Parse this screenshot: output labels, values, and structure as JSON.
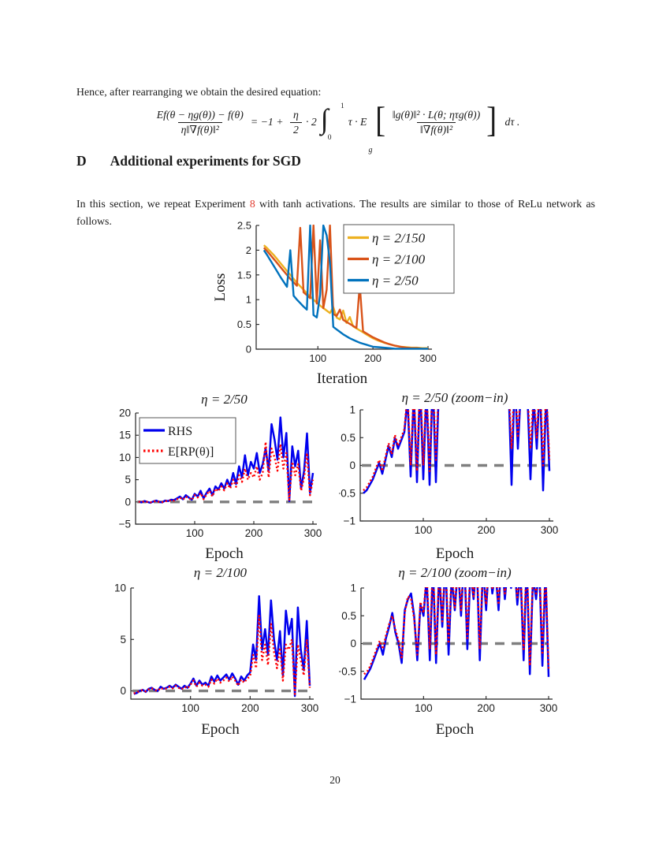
{
  "colors": {
    "link_red": "#e03a2e",
    "axis": "#222222",
    "zero_dash": "#7f7f7f",
    "matlab_yellow": "#EDB120",
    "matlab_orange": "#D95319",
    "matlab_blue": "#0072BD",
    "rhs_blue": "#0000EE",
    "rp_red": "#FF0000"
  },
  "text": {
    "lead": "Hence, after rearranging we obtain the desired equation:",
    "para_before": "In this section, we repeat Experiment ",
    "para_link": "8",
    "para_after": " with tanh activations. The results are similar to those of ReLu network as follows."
  },
  "equation": {
    "lhs_num": "Ef(θ − ηg(θ)) − f(θ)",
    "lhs_den": "η‖∇f(θ)‖²",
    "rhs_lead": "= −1 + ",
    "eta": "η",
    "two": "2",
    "times_two": "· 2",
    "integral": "∫",
    "int_upper": "1",
    "int_lower": "0",
    "tau_expect": "τ · E",
    "expect_sub": "g",
    "lbracket": "[",
    "brk_num": "‖g(θ)‖² · L(θ; ητg(θ))",
    "brk_den": "‖∇f(θ)‖²",
    "rbracket": "]",
    "dtau": "dτ ."
  },
  "section": {
    "label": "D",
    "title": "Additional experiments for SGD"
  },
  "page": {
    "number": "20"
  },
  "chart_data": [
    {
      "type": "line",
      "title": "",
      "xlabel": "Iteration",
      "ylabel": "Loss",
      "xlim": [
        -12,
        300
      ],
      "ylim": [
        0,
        2.5
      ],
      "xticks": [
        100,
        200,
        300
      ],
      "yticks": [
        0,
        0.5,
        1,
        1.5,
        2,
        2.5
      ],
      "zero_line": false,
      "legend_position": "northeast",
      "grid": false,
      "x": [
        2,
        8,
        14,
        20,
        26,
        32,
        38,
        44,
        50,
        56,
        62,
        68,
        74,
        80,
        86,
        92,
        98,
        104,
        110,
        116,
        122,
        128,
        134,
        140,
        146,
        152,
        158,
        164,
        170,
        176,
        182,
        188,
        194,
        200,
        210,
        220,
        230,
        240,
        250,
        260,
        270,
        280,
        290,
        300
      ],
      "series": [
        {
          "name": "η = 2/150",
          "color": "#EDB120",
          "width": 2.4,
          "y": [
            2.1,
            2.04,
            1.97,
            1.9,
            1.82,
            1.74,
            1.66,
            1.58,
            1.5,
            1.42,
            1.34,
            1.27,
            1.2,
            1.13,
            1.06,
            1.0,
            0.94,
            0.88,
            0.83,
            0.78,
            0.73,
            0.85,
            0.64,
            0.6,
            0.78,
            0.53,
            0.65,
            0.46,
            0.42,
            0.38,
            0.34,
            0.3,
            0.26,
            0.22,
            0.17,
            0.13,
            0.1,
            0.07,
            0.05,
            0.04,
            0.03,
            0.03,
            0.02,
            0.02
          ]
        },
        {
          "name": "η = 2/100",
          "color": "#D95319",
          "width": 2.4,
          "y": [
            2.05,
            1.98,
            1.9,
            1.82,
            1.74,
            1.66,
            1.58,
            1.5,
            1.42,
            1.35,
            1.28,
            2.45,
            1.15,
            1.09,
            1.03,
            2.5,
            0.92,
            2.2,
            0.83,
            1.2,
            2.5,
            0.71,
            0.67,
            0.8,
            0.59,
            0.55,
            0.51,
            0.47,
            0.43,
            1.3,
            0.36,
            0.32,
            0.28,
            0.24,
            0.19,
            0.14,
            0.1,
            0.07,
            0.05,
            0.03,
            0.02,
            0.02,
            0.01,
            0.01
          ]
        },
        {
          "name": "η = 2/50",
          "color": "#0072BD",
          "width": 2.4,
          "y": [
            2.0,
            1.9,
            1.79,
            1.68,
            1.57,
            1.46,
            1.36,
            1.26,
            2.0,
            1.08,
            1.0,
            0.93,
            0.86,
            0.8,
            2.5,
            0.69,
            0.64,
            1.1,
            2.5,
            2.3,
            1.75,
            0.45,
            0.4,
            0.35,
            0.3,
            0.26,
            0.22,
            0.19,
            0.16,
            0.13,
            0.11,
            0.09,
            0.07,
            0.05,
            0.04,
            0.03,
            0.02,
            0.01,
            0.01,
            0.01,
            0.01,
            0.01,
            0.01,
            0.01
          ]
        }
      ]
    },
    {
      "type": "line",
      "title": "η = 2/50",
      "xlabel": "Epoch",
      "ylabel": "",
      "xlim": [
        0,
        300
      ],
      "ylim": [
        -5,
        20
      ],
      "xticks": [
        100,
        200,
        300
      ],
      "yticks": [
        -5,
        0,
        5,
        10,
        15,
        20
      ],
      "zero_line": true,
      "legend_position": "northwest",
      "grid": false,
      "x": [
        5,
        10,
        15,
        20,
        25,
        30,
        35,
        40,
        45,
        50,
        55,
        60,
        65,
        70,
        75,
        80,
        85,
        90,
        95,
        100,
        105,
        110,
        115,
        120,
        125,
        130,
        135,
        140,
        145,
        150,
        155,
        160,
        165,
        170,
        175,
        180,
        185,
        190,
        195,
        200,
        205,
        210,
        215,
        220,
        225,
        230,
        235,
        240,
        245,
        250,
        255,
        260,
        265,
        270,
        275,
        280,
        285,
        290,
        295,
        300
      ],
      "series": [
        {
          "name": "RHS",
          "color": "#0000EE",
          "width": 2.5,
          "y": [
            0.1,
            -0.1,
            0.2,
            0.0,
            -0.2,
            0.1,
            0.3,
            0.0,
            -0.1,
            0.3,
            0.2,
            0.5,
            0.4,
            0.8,
            1.2,
            0.6,
            1.5,
            1.0,
            0.5,
            1.8,
            1.2,
            2.5,
            0.8,
            2.0,
            3.0,
            1.5,
            3.5,
            2.8,
            4.2,
            3.0,
            5.0,
            3.5,
            6.5,
            4.0,
            8.0,
            5.5,
            10.5,
            6.0,
            9.0,
            7.5,
            11.0,
            6.5,
            8.5,
            12.0,
            7.0,
            17.5,
            14.0,
            9.5,
            19.0,
            10.0,
            15.5,
            0.2,
            12.5,
            8.0,
            11.5,
            3.0,
            7.0,
            15.4,
            2.0,
            6.5
          ]
        },
        {
          "name": "E[RP(θ)]",
          "color": "#FF0000",
          "width": 2.4,
          "dash": "dot",
          "y": [
            0.05,
            -0.05,
            0.15,
            0.0,
            -0.1,
            0.1,
            0.2,
            0.0,
            -0.05,
            0.2,
            0.15,
            0.4,
            0.3,
            0.6,
            1.0,
            0.5,
            1.2,
            0.8,
            0.4,
            1.5,
            1.0,
            2.0,
            0.6,
            1.7,
            2.5,
            1.2,
            3.0,
            2.4,
            3.5,
            2.6,
            4.2,
            3.0,
            5.0,
            3.4,
            6.0,
            4.5,
            7.5,
            5.0,
            6.5,
            5.5,
            8.0,
            5.0,
            6.5,
            13.5,
            5.5,
            12.0,
            10.0,
            7.0,
            13.0,
            7.5,
            11.0,
            0.5,
            9.0,
            6.0,
            8.5,
            2.5,
            5.5,
            11.0,
            1.5,
            5.0
          ]
        }
      ]
    },
    {
      "type": "line",
      "title": "η = 2/50 (zoom-in)",
      "xlabel": "Epoch",
      "ylabel": "",
      "xlim": [
        0,
        300
      ],
      "ylim": [
        -1,
        1
      ],
      "xticks": [
        100,
        200,
        300
      ],
      "yticks": [
        -1,
        -0.5,
        0,
        0.5,
        1
      ],
      "zero_line": true,
      "legend_position": "none",
      "grid": false,
      "x": [
        5,
        10,
        15,
        20,
        25,
        30,
        35,
        40,
        45,
        50,
        55,
        60,
        65,
        70,
        75,
        80,
        85,
        90,
        95,
        100,
        105,
        110,
        115,
        120,
        125,
        130,
        135,
        140,
        145,
        150,
        155,
        160,
        165,
        170,
        175,
        180,
        185,
        190,
        195,
        200,
        205,
        210,
        215,
        220,
        225,
        230,
        235,
        240,
        245,
        250,
        255,
        260,
        265,
        270,
        275,
        280,
        285,
        290,
        295,
        300
      ],
      "series": [
        {
          "name": "RHS",
          "color": "#0000EE",
          "width": 2.5,
          "y": [
            -0.5,
            -0.45,
            -0.35,
            -0.25,
            -0.1,
            0.05,
            -0.15,
            0.1,
            0.35,
            0.15,
            0.5,
            0.3,
            0.45,
            0.6,
            1.2,
            -0.2,
            1.3,
            -0.3,
            1.5,
            -0.25,
            1.4,
            -0.35,
            1.6,
            -0.3,
            1.5,
            1.8,
            1.6,
            2.0,
            1.7,
            1.9,
            2.1,
            1.8,
            2.2,
            1.9,
            2.0,
            2.3,
            2.1,
            2.4,
            2.2,
            2.0,
            2.2,
            1.9,
            2.1,
            1.8,
            2.0,
            1.1,
            1.5,
            -0.35,
            1.6,
            0.3,
            1.4,
            1.1,
            1.3,
            -0.25,
            1.2,
            0.3,
            1.5,
            -0.45,
            1.3,
            -0.1
          ]
        },
        {
          "name": "E[RP(θ)]",
          "color": "#FF0000",
          "width": 2.4,
          "dash": "dot",
          "y": [
            -0.45,
            -0.4,
            -0.3,
            -0.2,
            -0.05,
            0.1,
            -0.1,
            0.15,
            0.4,
            0.2,
            0.55,
            0.35,
            0.5,
            0.65,
            1.3,
            0.0,
            1.4,
            -0.1,
            1.6,
            0.0,
            1.5,
            -0.1,
            1.7,
            0.1,
            1.6,
            1.9,
            1.7,
            2.1,
            1.8,
            2.0,
            2.2,
            1.9,
            2.3,
            2.0,
            2.1,
            2.4,
            2.2,
            2.5,
            2.3,
            2.1,
            2.3,
            2.0,
            2.2,
            1.9,
            2.1,
            1.2,
            1.6,
            0.3,
            1.7,
            0.5,
            1.5,
            1.2,
            1.4,
            0.3,
            1.3,
            0.5,
            1.6,
            0.0,
            1.4,
            0.1
          ]
        }
      ]
    },
    {
      "type": "line",
      "title": "η = 2/100",
      "xlabel": "Epoch",
      "ylabel": "",
      "xlim": [
        0,
        300
      ],
      "ylim": [
        -0.8,
        10
      ],
      "xticks": [
        100,
        200,
        300
      ],
      "yticks": [
        0,
        5,
        10
      ],
      "zero_line": true,
      "legend_position": "none",
      "grid": false,
      "x": [
        5,
        10,
        15,
        20,
        25,
        30,
        35,
        40,
        45,
        50,
        55,
        60,
        65,
        70,
        75,
        80,
        85,
        90,
        95,
        100,
        105,
        110,
        115,
        120,
        125,
        130,
        135,
        140,
        145,
        150,
        155,
        160,
        165,
        170,
        175,
        180,
        185,
        190,
        195,
        200,
        205,
        210,
        215,
        220,
        225,
        230,
        235,
        240,
        245,
        250,
        255,
        260,
        265,
        270,
        275,
        280,
        285,
        290,
        295,
        300
      ],
      "series": [
        {
          "name": "RHS",
          "color": "#0000EE",
          "width": 2.5,
          "y": [
            -0.3,
            -0.2,
            0.0,
            0.1,
            -0.1,
            0.2,
            0.3,
            0.1,
            0.0,
            0.4,
            0.2,
            0.3,
            0.5,
            0.3,
            0.6,
            0.4,
            0.2,
            0.5,
            0.3,
            0.7,
            1.2,
            0.5,
            1.0,
            0.6,
            0.8,
            0.5,
            1.4,
            0.9,
            1.5,
            1.0,
            1.3,
            1.6,
            1.1,
            1.7,
            1.2,
            0.6,
            1.4,
            1.0,
            1.5,
            1.8,
            4.5,
            3.0,
            9.2,
            4.0,
            6.0,
            3.5,
            8.8,
            5.0,
            3.0,
            5.8,
            1.5,
            7.8,
            5.5,
            7.0,
            -0.5,
            8.1,
            4.0,
            2.0,
            6.8,
            0.5
          ]
        },
        {
          "name": "E[RP(θ)]",
          "color": "#FF0000",
          "width": 2.4,
          "dash": "dot",
          "y": [
            -0.25,
            -0.15,
            0.0,
            0.1,
            -0.05,
            0.15,
            0.25,
            0.1,
            0.0,
            0.3,
            0.15,
            0.25,
            0.4,
            0.25,
            0.5,
            0.3,
            0.15,
            0.4,
            0.25,
            0.6,
            1.0,
            0.4,
            0.8,
            0.5,
            0.6,
            0.4,
            1.1,
            0.7,
            1.2,
            0.8,
            1.0,
            1.3,
            0.9,
            1.4,
            1.0,
            0.5,
            1.1,
            0.8,
            1.2,
            1.4,
            3.5,
            2.2,
            7.3,
            3.0,
            4.5,
            2.5,
            6.5,
            3.8,
            2.2,
            4.2,
            1.0,
            4.5,
            4.0,
            5.0,
            -0.3,
            4.5,
            3.0,
            1.5,
            5.0,
            0.3
          ]
        }
      ]
    },
    {
      "type": "line",
      "title": "η = 2/100 (zoom-in)",
      "xlabel": "Epoch",
      "ylabel": "",
      "xlim": [
        0,
        300
      ],
      "ylim": [
        -1,
        1
      ],
      "xticks": [
        100,
        200,
        300
      ],
      "yticks": [
        -1,
        -0.5,
        0,
        0.5,
        1
      ],
      "zero_line": true,
      "legend_position": "none",
      "grid": false,
      "x": [
        5,
        10,
        15,
        20,
        25,
        30,
        35,
        40,
        45,
        50,
        55,
        60,
        65,
        70,
        75,
        80,
        85,
        90,
        95,
        100,
        105,
        110,
        115,
        120,
        125,
        130,
        135,
        140,
        145,
        150,
        155,
        160,
        165,
        170,
        175,
        180,
        185,
        190,
        195,
        200,
        205,
        210,
        215,
        220,
        225,
        230,
        235,
        240,
        245,
        250,
        255,
        260,
        265,
        270,
        275,
        280,
        285,
        290,
        295,
        300
      ],
      "series": [
        {
          "name": "RHS",
          "color": "#0000EE",
          "width": 2.5,
          "y": [
            -0.65,
            -0.55,
            -0.45,
            -0.3,
            -0.15,
            0.0,
            -0.2,
            0.1,
            0.3,
            0.55,
            0.2,
            0.0,
            -0.35,
            0.6,
            0.8,
            0.9,
            0.5,
            -0.3,
            0.7,
            0.5,
            1.2,
            -0.3,
            1.4,
            -0.35,
            1.3,
            0.3,
            1.5,
            -0.2,
            1.2,
            0.6,
            1.4,
            0.5,
            1.6,
            -0.1,
            1.3,
            0.8,
            1.5,
            -0.3,
            1.4,
            0.6,
            1.5,
            0.9,
            1.3,
            0.6,
            1.6,
            0.8,
            1.4,
            1.0,
            1.5,
            0.7,
            1.3,
            -0.3,
            1.5,
            -0.55,
            1.2,
            0.8,
            1.4,
            -0.4,
            1.3,
            -0.6
          ]
        },
        {
          "name": "E[RP(θ)]",
          "color": "#FF0000",
          "width": 2.4,
          "dash": "dot",
          "y": [
            -0.55,
            -0.5,
            -0.4,
            -0.25,
            -0.1,
            0.05,
            -0.1,
            0.15,
            0.35,
            0.5,
            0.25,
            0.05,
            -0.25,
            0.55,
            0.85,
            0.8,
            0.45,
            -0.2,
            0.75,
            0.55,
            1.3,
            -0.1,
            1.5,
            -0.2,
            1.4,
            0.4,
            1.6,
            0.0,
            1.3,
            0.65,
            1.5,
            0.6,
            1.7,
            0.1,
            1.4,
            0.85,
            1.6,
            -0.1,
            1.5,
            0.7,
            1.6,
            1.0,
            1.4,
            0.7,
            1.7,
            0.9,
            1.5,
            1.1,
            1.6,
            0.8,
            1.4,
            -0.1,
            1.6,
            -0.4,
            1.3,
            0.9,
            1.5,
            -0.2,
            1.4,
            -0.45
          ]
        }
      ]
    }
  ]
}
